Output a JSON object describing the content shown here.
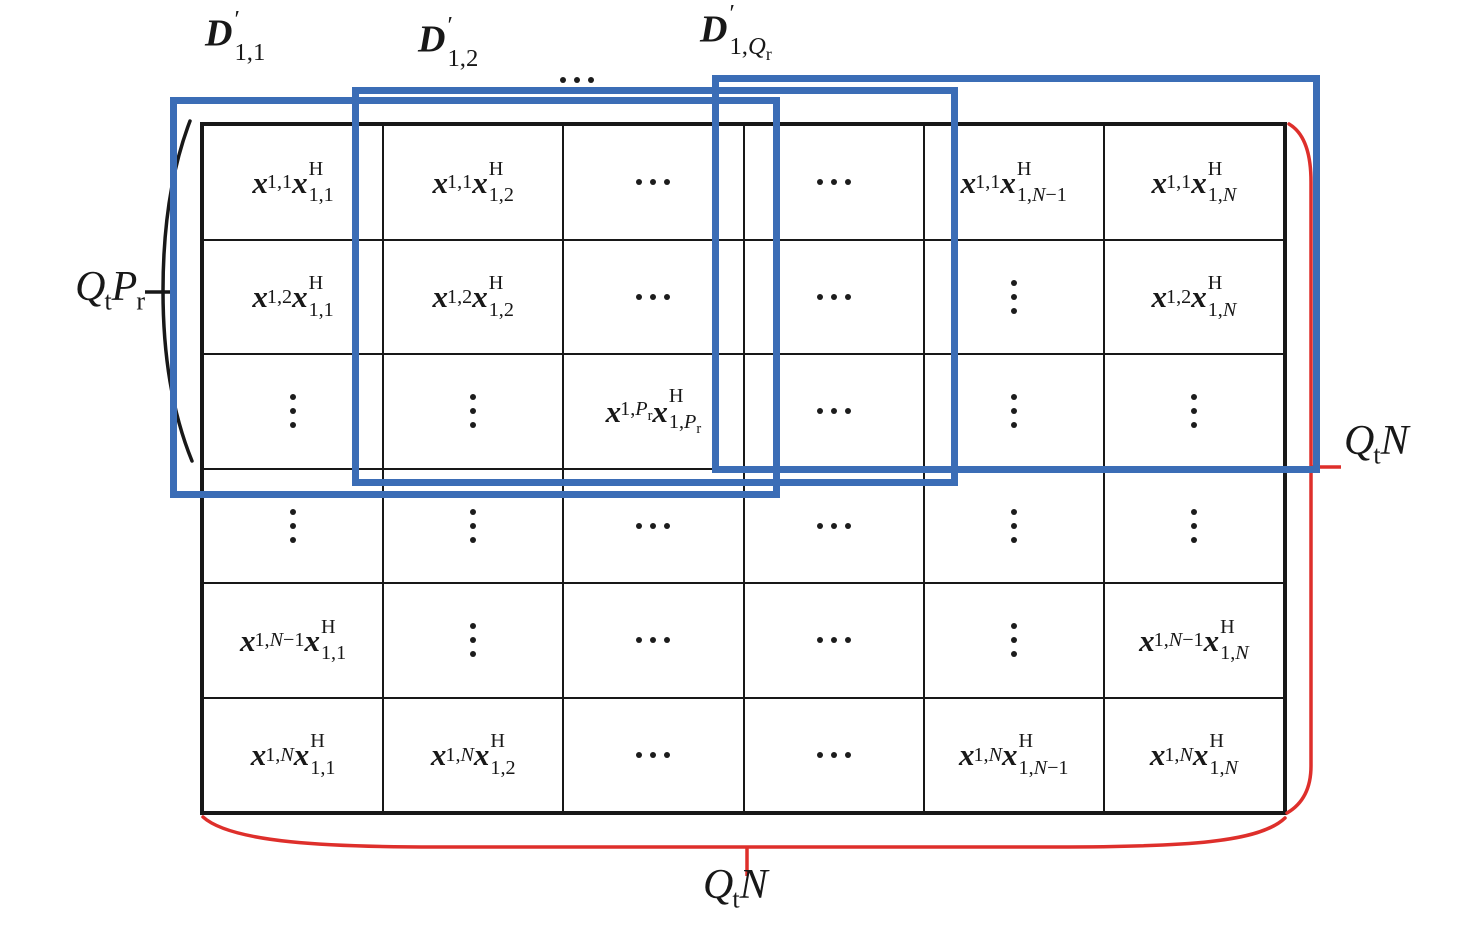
{
  "figure": {
    "type": "matrix-diagram",
    "colors": {
      "outline_blue": "#3b6db6",
      "brace_red": "#de2f2b",
      "ink": "#181818"
    },
    "top_labels": [
      {
        "kind": "dmatrix",
        "base": "D",
        "prime": "′",
        "sub": "1,1"
      },
      {
        "kind": "dmatrix",
        "base": "D",
        "prime": "′",
        "sub": "1,2"
      },
      {
        "kind": "cdots"
      },
      {
        "kind": "dmatrix",
        "base": "D",
        "prime": "′",
        "sub": "1,Q_r"
      }
    ],
    "left_dimension_label": {
      "parts": [
        {
          "base": "Q",
          "sub": "t"
        },
        {
          "base": "P",
          "sub": "r"
        }
      ]
    },
    "right_dimension_label": {
      "parts": [
        {
          "base": "Q",
          "sub": "t"
        },
        {
          "base": "N",
          "sub": ""
        }
      ]
    },
    "bottom_dimension_label": {
      "parts": [
        {
          "base": "Q",
          "sub": "t"
        },
        {
          "base": "N",
          "sub": ""
        }
      ]
    },
    "matrix": {
      "rows": [
        [
          {
            "t": "prod",
            "a": "1,1",
            "b": "1,1"
          },
          {
            "t": "prod",
            "a": "1,1",
            "b": "1,2"
          },
          {
            "t": "cdots"
          },
          {
            "t": "cdots"
          },
          {
            "t": "prod",
            "a": "1,1",
            "b": "1,N−1"
          },
          {
            "t": "prod",
            "a": "1,1",
            "b": "1,N"
          }
        ],
        [
          {
            "t": "prod",
            "a": "1,2",
            "b": "1,1"
          },
          {
            "t": "prod",
            "a": "1,2",
            "b": "1,2"
          },
          {
            "t": "cdots"
          },
          {
            "t": "cdots"
          },
          {
            "t": "vdots"
          },
          {
            "t": "prod",
            "a": "1,2",
            "b": "1,N"
          }
        ],
        [
          {
            "t": "vdots"
          },
          {
            "t": "vdots"
          },
          {
            "t": "prod",
            "a": "1,P_r",
            "b": "1,P_r"
          },
          {
            "t": "cdots"
          },
          {
            "t": "vdots"
          },
          {
            "t": "vdots"
          }
        ],
        [
          {
            "t": "vdots"
          },
          {
            "t": "vdots"
          },
          {
            "t": "cdots"
          },
          {
            "t": "cdots"
          },
          {
            "t": "vdots"
          },
          {
            "t": "vdots"
          }
        ],
        [
          {
            "t": "prod",
            "a": "1,N−1",
            "b": "1,1"
          },
          {
            "t": "vdots"
          },
          {
            "t": "cdots"
          },
          {
            "t": "cdots"
          },
          {
            "t": "vdots"
          },
          {
            "t": "prod",
            "a": "1,N−1",
            "b": "1,N"
          }
        ],
        [
          {
            "t": "prod",
            "a": "1,N",
            "b": "1,1"
          },
          {
            "t": "prod",
            "a": "1,N",
            "b": "1,2"
          },
          {
            "t": "cdots"
          },
          {
            "t": "cdots"
          },
          {
            "t": "prod",
            "a": "1,N",
            "b": "1,N−1"
          },
          {
            "t": "prod",
            "a": "1,N",
            "b": "1,N"
          }
        ]
      ],
      "vector_symbol": "x",
      "hermitian_superscript": "H"
    }
  }
}
